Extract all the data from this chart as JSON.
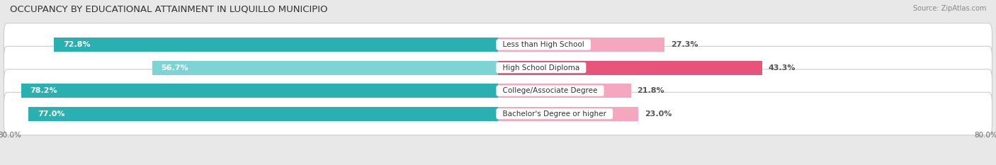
{
  "title": "OCCUPANCY BY EDUCATIONAL ATTAINMENT IN LUQUILLO MUNICIPIO",
  "source": "Source: ZipAtlas.com",
  "categories": [
    "Less than High School",
    "High School Diploma",
    "College/Associate Degree",
    "Bachelor's Degree or higher"
  ],
  "owner_values": [
    72.8,
    56.7,
    78.2,
    77.0
  ],
  "renter_values": [
    27.3,
    43.3,
    21.8,
    23.0
  ],
  "owner_color_dark": "#2ab0b0",
  "owner_color_light": "#7dd4d4",
  "renter_color_dark": "#e8537a",
  "renter_color_light": "#f4a7be",
  "bg_color": "#e8e8e8",
  "row_bg_color": "#f5f5f5",
  "row_border_color": "#cccccc",
  "title_fontsize": 9.5,
  "source_fontsize": 7,
  "value_fontsize": 8,
  "cat_fontsize": 7.5,
  "tick_fontsize": 7.5,
  "legend_fontsize": 7.5,
  "scale": 80.0
}
